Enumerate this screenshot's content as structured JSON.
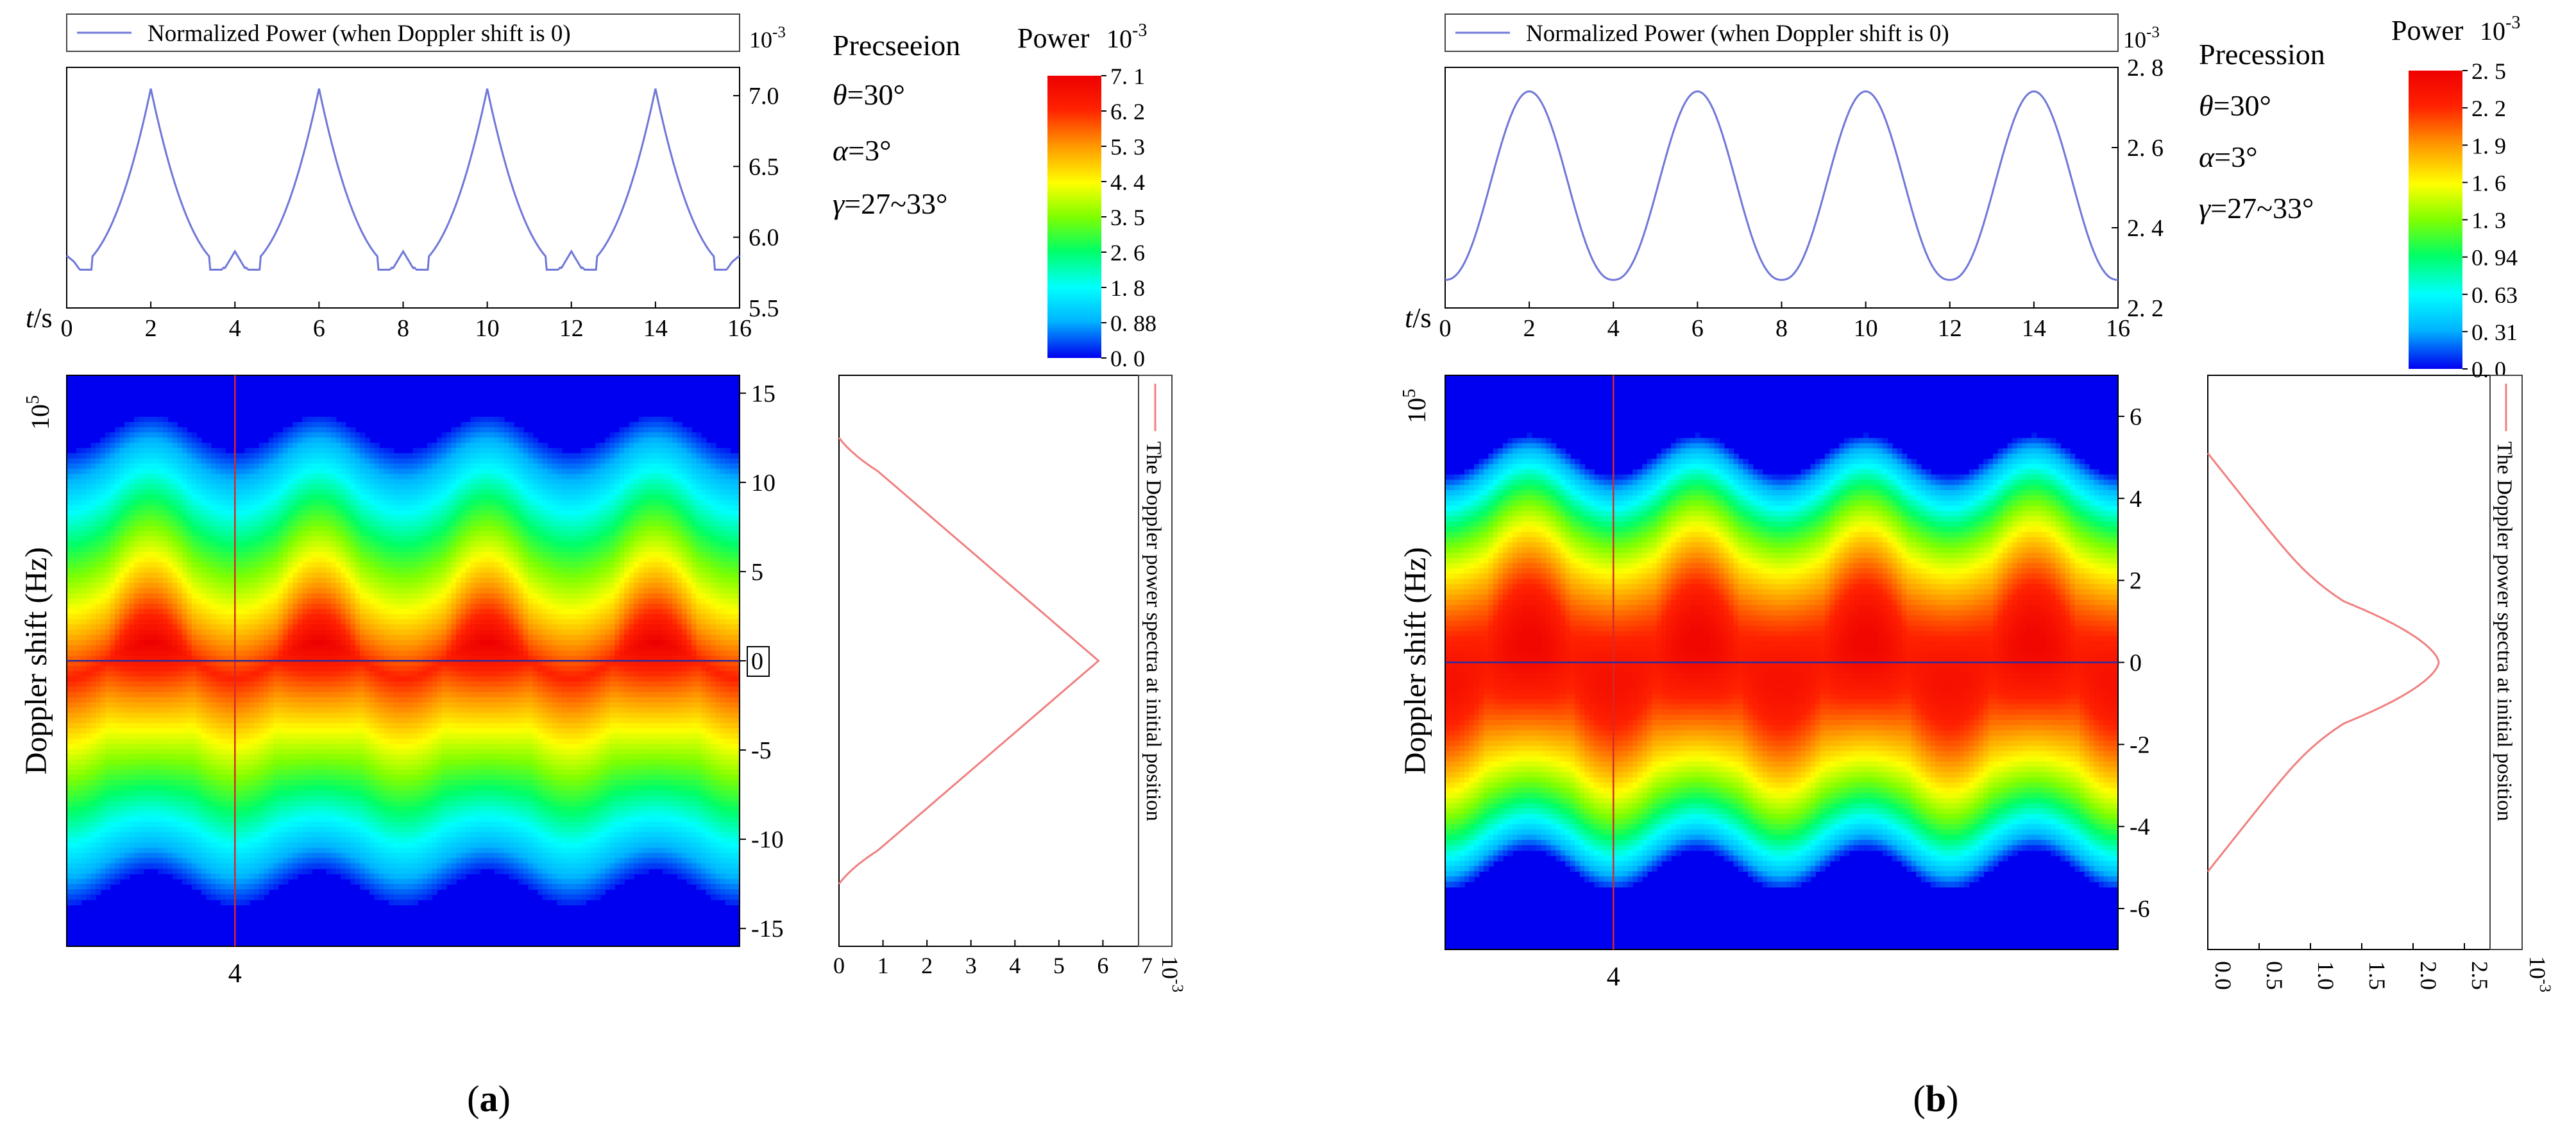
{
  "colors": {
    "line_blue": "#6f77d8",
    "line_red": "#f08080",
    "cursor_red": "#d42a2a",
    "cursor_blue": "#2a2aa0",
    "colormap": [
      "#0000f0",
      "#00b4ff",
      "#00ffff",
      "#00ff66",
      "#80ff00",
      "#ffff00",
      "#ff9900",
      "#ff2200",
      "#ee0000"
    ]
  },
  "chart_data": [
    {
      "id": "a",
      "panel_label_open": "(",
      "panel_label": "a",
      "panel_label_close": ")",
      "parameters": {
        "title": "Precseeion",
        "theta": {
          "symbol": "θ",
          "text": "=30°"
        },
        "alpha": {
          "symbol": "α",
          "text": "=3°"
        },
        "gamma": {
          "symbol": "γ",
          "text": "=27~33°"
        }
      },
      "top_plot": {
        "type": "line",
        "legend": "Normalized Power (when Doppler shift is 0)",
        "exponent_label": "10",
        "exponent_power": "-3",
        "x_label_italic": "t",
        "x_label_rest": "/s",
        "xlim": [
          0,
          16
        ],
        "xticks": [
          "0",
          "2",
          "4",
          "6",
          "8",
          "10",
          "12",
          "14",
          "16"
        ],
        "ylim": [
          5.5,
          7.2
        ],
        "yticks": [
          "5.5",
          "6.0",
          "6.5",
          "7.0"
        ],
        "shape": "cusp",
        "period": 4,
        "peaks_at": [
          2,
          6,
          10,
          14
        ],
        "peak_value": 7.05,
        "min_value": 5.77,
        "small_bump_at": [
          4,
          8,
          12
        ],
        "small_bump_value": 5.9
      },
      "colorbar": {
        "title": "Power",
        "exponent_label": "10",
        "exponent_power": "-3",
        "ticks": [
          "7. 1",
          "6. 2",
          "5. 3",
          "4. 4",
          "3. 5",
          "2. 6",
          "1. 8",
          "0. 88",
          "0. 0"
        ]
      },
      "heatmap": {
        "type": "heatmap",
        "ylabel": "Doppler shift (Hz)",
        "y_exponent": "10",
        "y_exponent_power": "5",
        "ylim": [
          -16,
          16
        ],
        "yticks": [
          "15",
          "10",
          "5",
          "0",
          "-5",
          "-10",
          "-15"
        ],
        "xlim": [
          0,
          16
        ],
        "cursor_t_label": "4",
        "cursor_t": 4,
        "zero_box": true,
        "band_halfwidth": 13,
        "oscillation_amplitude": 1.0,
        "period": 4
      },
      "side_plot": {
        "type": "line",
        "legend": "The Doppler power spectra at initial position",
        "xlim": [
          0,
          7
        ],
        "xticks": [
          "0",
          "1",
          "2",
          "3",
          "4",
          "5",
          "6",
          "7"
        ],
        "x_exponent_label": "10",
        "x_exponent_power": "-3",
        "ylim": [
          -16,
          16
        ],
        "shape": "triangle",
        "peak_value": 5.9,
        "half_width": 12.5
      }
    },
    {
      "id": "b",
      "panel_label_open": "(",
      "panel_label": "b",
      "panel_label_close": ")",
      "parameters": {
        "title": "Precession",
        "theta": {
          "symbol": "θ",
          "text": "=30°"
        },
        "alpha": {
          "symbol": "α",
          "text": "=3°"
        },
        "gamma": {
          "symbol": "γ",
          "text": "=27~33°"
        }
      },
      "top_plot": {
        "type": "line",
        "legend": "Normalized Power (when Doppler shift is 0)",
        "exponent_label": "10",
        "exponent_power": "-3",
        "x_label_italic": "t",
        "x_label_rest": "/s",
        "xlim": [
          0,
          16
        ],
        "xticks": [
          "0",
          "2",
          "4",
          "6",
          "8",
          "10",
          "12",
          "14",
          "16"
        ],
        "ylim": [
          2.2,
          2.8
        ],
        "yticks": [
          "2. 2",
          "2. 4",
          "2. 6",
          "2. 8"
        ],
        "shape": "smooth",
        "period": 4,
        "peaks_at": [
          2,
          6,
          10,
          14
        ],
        "peak_value": 2.74,
        "min_value": 2.27
      },
      "colorbar": {
        "title": "Power",
        "exponent_label": "10",
        "exponent_power": "-3",
        "ticks": [
          "2. 5",
          "2. 2",
          "1. 9",
          "1. 6",
          "1. 3",
          "0. 94",
          "0. 63",
          "0. 31",
          "0. 0"
        ]
      },
      "heatmap": {
        "type": "heatmap",
        "ylabel": "Doppler shift (Hz)",
        "y_exponent": "10",
        "y_exponent_power": "5",
        "ylim": [
          -7,
          7
        ],
        "yticks": [
          "6",
          "4",
          "2",
          "0",
          "-2",
          "-4",
          "-6"
        ],
        "xlim": [
          0,
          16
        ],
        "cursor_t_label": "4",
        "cursor_t": 4,
        "zero_box": false,
        "band_halfwidth": 5.1,
        "oscillation_amplitude": 0.5,
        "period": 4
      },
      "side_plot": {
        "type": "line",
        "legend": "The Doppler power spectra at initial position",
        "xlim": [
          0,
          2.75
        ],
        "xticks": [
          "0.0",
          "0.5",
          "1.0",
          "1.5",
          "2.0",
          "2.5"
        ],
        "x_exponent_label": "10",
        "x_exponent_power": "-3",
        "ylim": [
          -7,
          7
        ],
        "shape": "bell",
        "peak_value": 2.25,
        "half_width": 5.1
      }
    }
  ]
}
